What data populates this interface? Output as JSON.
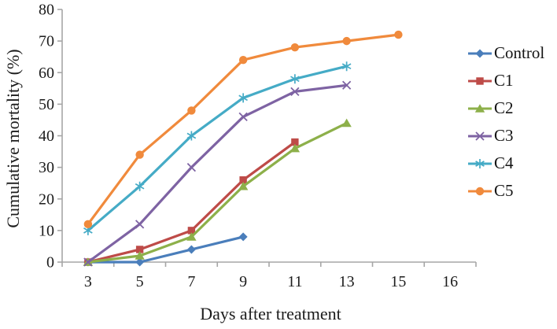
{
  "chart_data": {
    "type": "line",
    "title": "",
    "xlabel": "Days after treatment",
    "ylabel": "Cumulative mortality (%)",
    "categories": [
      "3",
      "5",
      "7",
      "9",
      "11",
      "13",
      "15",
      "16"
    ],
    "y_ticks": [
      "0",
      "10",
      "20",
      "30",
      "40",
      "50",
      "60",
      "70",
      "80"
    ],
    "ylim": [
      0,
      80
    ],
    "grid": false,
    "legend_position": "right",
    "axis_color": "#a6a6a6",
    "text_color": "#1c1c1c",
    "series": [
      {
        "name": "Control",
        "marker": "diamond",
        "color": "#4a7ebb",
        "values": [
          0,
          0,
          4,
          8,
          null,
          null,
          null,
          null
        ]
      },
      {
        "name": "C1",
        "marker": "square",
        "color": "#be4b48",
        "values": [
          0,
          4,
          10,
          26,
          38,
          null,
          null,
          null
        ]
      },
      {
        "name": "C2",
        "marker": "triangle",
        "color": "#8db04a",
        "values": [
          0,
          2,
          8,
          24,
          36,
          44,
          null,
          null
        ]
      },
      {
        "name": "C3",
        "marker": "x",
        "color": "#7e63a3",
        "values": [
          0,
          12,
          30,
          46,
          54,
          56,
          null,
          null
        ]
      },
      {
        "name": "C4",
        "marker": "asterisk",
        "color": "#45abc6",
        "values": [
          10,
          24,
          40,
          52,
          58,
          62,
          null,
          null
        ]
      },
      {
        "name": "C5",
        "marker": "circle",
        "color": "#f08a3c",
        "values": [
          12,
          34,
          48,
          64,
          68,
          70,
          72,
          null
        ]
      }
    ]
  }
}
